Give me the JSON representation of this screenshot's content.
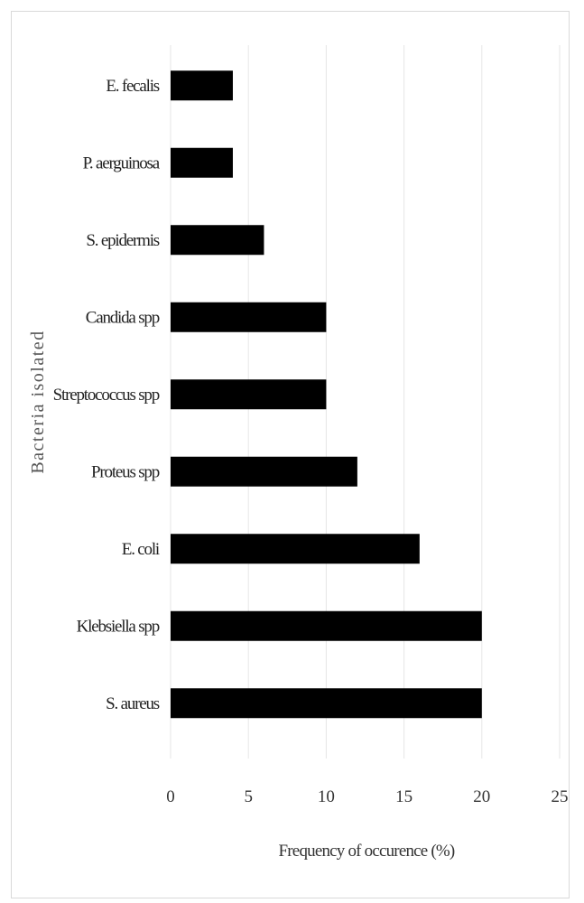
{
  "chart_data": {
    "type": "bar",
    "orientation": "horizontal",
    "categories": [
      "E. fecalis",
      "P. aerguinosa",
      "S. epidermis",
      "Candida spp",
      "Streptococcus spp",
      "Proteus spp",
      "E. coli",
      "Klebsiella spp",
      "S. aureus"
    ],
    "values": [
      4,
      4,
      6,
      10,
      10,
      12,
      16,
      20,
      20
    ],
    "xlabel": "Frequency of occurence (%)",
    "ylabel": "Bacteria isolated",
    "xlim": [
      0,
      25
    ],
    "xticks": [
      "0",
      "5",
      "10",
      "15",
      "20",
      "25"
    ],
    "grid": "vertical",
    "bar_color": "#000000",
    "legend": "none"
  }
}
